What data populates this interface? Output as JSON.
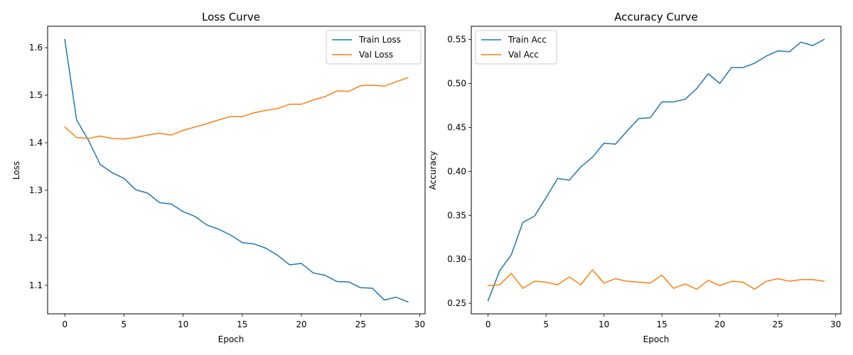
{
  "chart_data": [
    {
      "type": "line",
      "title": "Loss Curve",
      "xlabel": "Epoch",
      "ylabel": "Loss",
      "xlim": [
        -1.45,
        30.45
      ],
      "ylim": [
        1.04,
        1.645
      ],
      "xticks": [
        0,
        5,
        10,
        15,
        20,
        25,
        30
      ],
      "yticks": [
        1.1,
        1.2,
        1.3,
        1.4,
        1.5,
        1.6
      ],
      "ytick_labels": [
        "1.1",
        "1.2",
        "1.3",
        "1.4",
        "1.5",
        "1.6"
      ],
      "legend": "top-right",
      "grid": false,
      "x": [
        0,
        1,
        2,
        3,
        4,
        5,
        6,
        7,
        8,
        9,
        10,
        11,
        12,
        13,
        14,
        15,
        16,
        17,
        18,
        19,
        20,
        21,
        22,
        23,
        24,
        25,
        26,
        27,
        28,
        29
      ],
      "series": [
        {
          "name": "Train Loss",
          "color": "#1f77b4",
          "values": [
            1.617,
            1.448,
            1.405,
            1.354,
            1.337,
            1.325,
            1.301,
            1.294,
            1.274,
            1.271,
            1.255,
            1.245,
            1.227,
            1.218,
            1.206,
            1.19,
            1.187,
            1.178,
            1.163,
            1.143,
            1.146,
            1.126,
            1.121,
            1.108,
            1.107,
            1.095,
            1.094,
            1.069,
            1.075,
            1.065
          ]
        },
        {
          "name": "Val Loss",
          "color": "#ff7f0e",
          "values": [
            1.433,
            1.411,
            1.409,
            1.414,
            1.409,
            1.408,
            1.411,
            1.416,
            1.42,
            1.416,
            1.426,
            1.433,
            1.44,
            1.448,
            1.455,
            1.455,
            1.463,
            1.468,
            1.472,
            1.481,
            1.481,
            1.49,
            1.497,
            1.509,
            1.508,
            1.52,
            1.521,
            1.519,
            1.528,
            1.537
          ]
        }
      ]
    },
    {
      "type": "line",
      "title": "Accuracy Curve",
      "xlabel": "Epoch",
      "ylabel": "Accuracy",
      "xlim": [
        -1.45,
        30.45
      ],
      "ylim": [
        0.238,
        0.565
      ],
      "xticks": [
        0,
        5,
        10,
        15,
        20,
        25,
        30
      ],
      "yticks": [
        0.25,
        0.3,
        0.35,
        0.4,
        0.45,
        0.5,
        0.55
      ],
      "ytick_labels": [
        "0.25",
        "0.30",
        "0.35",
        "0.40",
        "0.45",
        "0.50",
        "0.55"
      ],
      "legend": "top-left",
      "grid": false,
      "x": [
        0,
        1,
        2,
        3,
        4,
        5,
        6,
        7,
        8,
        9,
        10,
        11,
        12,
        13,
        14,
        15,
        16,
        17,
        18,
        19,
        20,
        21,
        22,
        23,
        24,
        25,
        26,
        27,
        28,
        29
      ],
      "series": [
        {
          "name": "Train Acc",
          "color": "#1f77b4",
          "values": [
            0.253,
            0.287,
            0.305,
            0.342,
            0.349,
            0.37,
            0.392,
            0.39,
            0.405,
            0.416,
            0.432,
            0.431,
            0.446,
            0.46,
            0.461,
            0.479,
            0.479,
            0.482,
            0.494,
            0.511,
            0.5,
            0.518,
            0.518,
            0.523,
            0.531,
            0.537,
            0.536,
            0.547,
            0.543,
            0.55
          ]
        },
        {
          "name": "Val Acc",
          "color": "#ff7f0e",
          "values": [
            0.27,
            0.271,
            0.284,
            0.267,
            0.275,
            0.274,
            0.271,
            0.28,
            0.271,
            0.288,
            0.273,
            0.278,
            0.275,
            0.274,
            0.273,
            0.282,
            0.267,
            0.272,
            0.266,
            0.276,
            0.27,
            0.275,
            0.274,
            0.266,
            0.275,
            0.278,
            0.275,
            0.277,
            0.277,
            0.275
          ]
        }
      ]
    }
  ]
}
